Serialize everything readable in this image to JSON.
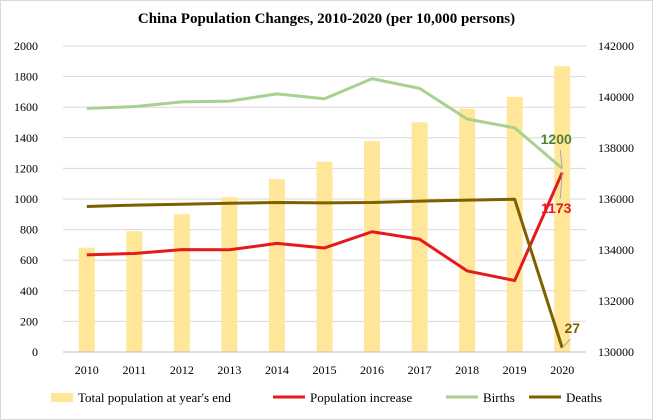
{
  "chart_data": {
    "type": "bar+line",
    "title": "China Population Changes, 2010-2020 (per 10,000 persons)",
    "categories": [
      "2010",
      "2011",
      "2012",
      "2013",
      "2014",
      "2015",
      "2016",
      "2017",
      "2018",
      "2019",
      "2020"
    ],
    "y_left": {
      "min": 0,
      "max": 2000,
      "step": 200,
      "ticks": [
        "0",
        "200",
        "400",
        "600",
        "800",
        "1000",
        "1200",
        "1400",
        "1600",
        "1800",
        "2000"
      ]
    },
    "y_right": {
      "min": 130000,
      "max": 142000,
      "step": 2000,
      "ticks": [
        "130000",
        "132000",
        "134000",
        "136000",
        "138000",
        "140000",
        "142000"
      ]
    },
    "grid": true,
    "legend_position": "bottom",
    "series": [
      {
        "name": "Total population at year's end",
        "type": "bar",
        "axis": "right",
        "color": "#ffe699",
        "values": [
          134091,
          134735,
          135404,
          136072,
          136782,
          137462,
          138271,
          139008,
          139538,
          140005,
          141212
        ]
      },
      {
        "name": "Population increase",
        "type": "line",
        "axis": "left",
        "color": "#e41a1c",
        "values": [
          635,
          644,
          669,
          668,
          710,
          680,
          786,
          737,
          530,
          467,
          1173
        ]
      },
      {
        "name": "Births",
        "type": "line",
        "axis": "left",
        "color": "#a9d18e",
        "values": [
          1592,
          1604,
          1635,
          1640,
          1687,
          1655,
          1786,
          1723,
          1523,
          1465,
          1200
        ]
      },
      {
        "name": "Deaths",
        "type": "line",
        "axis": "left",
        "color": "#7f6000",
        "values": [
          951,
          960,
          966,
          972,
          977,
          975,
          977,
          986,
          993,
          998,
          27
        ]
      }
    ],
    "annotations": [
      {
        "text": "1200",
        "color": "#548235",
        "series": "Births",
        "index": 10
      },
      {
        "text": "1173",
        "color": "#e41a1c",
        "series": "Population increase",
        "index": 10
      },
      {
        "text": "27",
        "color": "#7f6000",
        "series": "Deaths",
        "index": 10
      }
    ]
  }
}
